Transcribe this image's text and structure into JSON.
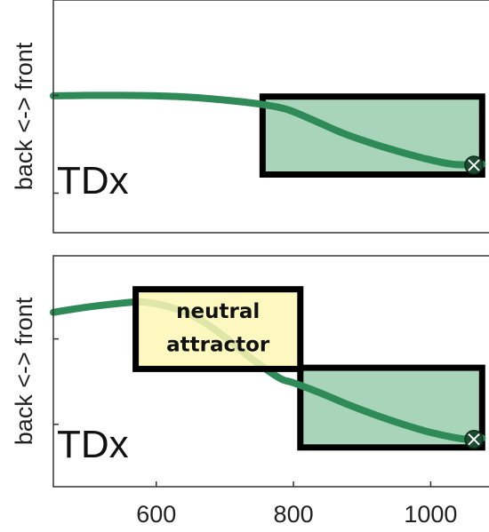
{
  "chart_data": [
    {
      "type": "line",
      "title": "",
      "ylabel": "back <-> front",
      "panel_label": "TDx",
      "xlim": [
        450,
        1085
      ],
      "ylim": [
        0,
        1
      ],
      "series": [
        {
          "color": "#2e8b57",
          "x": [
            450,
            500,
            550,
            600,
            650,
            700,
            750,
            790,
            830,
            870,
            910,
            950,
            990,
            1030,
            1060,
            1075
          ],
          "y": [
            0.588,
            0.59,
            0.59,
            0.588,
            0.582,
            0.57,
            0.553,
            0.53,
            0.482,
            0.43,
            0.388,
            0.352,
            0.32,
            0.295,
            0.292,
            0.294
          ]
        }
      ],
      "highlight_box": {
        "x": [
          755,
          1075
        ],
        "y": [
          0.25,
          0.585
        ],
        "color": "#a8d5ba"
      },
      "endpoint_marker": {
        "x": 1063,
        "y": 0.29,
        "symbol": "x-circle"
      }
    },
    {
      "type": "line",
      "title": "",
      "ylabel": "back <-> front",
      "panel_label": "TDx",
      "xlim": [
        450,
        1085
      ],
      "ylim": [
        0,
        1
      ],
      "xticks": [
        "600",
        "800",
        "1000"
      ],
      "series": [
        {
          "color": "#2e8b57",
          "x": [
            450,
            500,
            550,
            580,
            620,
            660,
            700,
            740,
            780,
            800,
            840,
            880,
            920,
            960,
            1000,
            1040,
            1060,
            1075
          ],
          "y": [
            0.755,
            0.778,
            0.795,
            0.8,
            0.778,
            0.73,
            0.648,
            0.552,
            0.47,
            0.45,
            0.405,
            0.355,
            0.31,
            0.27,
            0.235,
            0.21,
            0.205,
            0.21
          ]
        }
      ],
      "annotation_box": {
        "text_lines": [
          "neutral",
          "attractor"
        ],
        "x": [
          570,
          810
        ],
        "y": [
          0.51,
          0.855
        ],
        "color": "#fdf7b5"
      },
      "highlight_box": {
        "x": [
          810,
          1075
        ],
        "y": [
          0.17,
          0.515
        ],
        "color": "#a8d5ba"
      },
      "endpoint_marker": {
        "x": 1063,
        "y": 0.205,
        "symbol": "x-circle"
      }
    }
  ]
}
